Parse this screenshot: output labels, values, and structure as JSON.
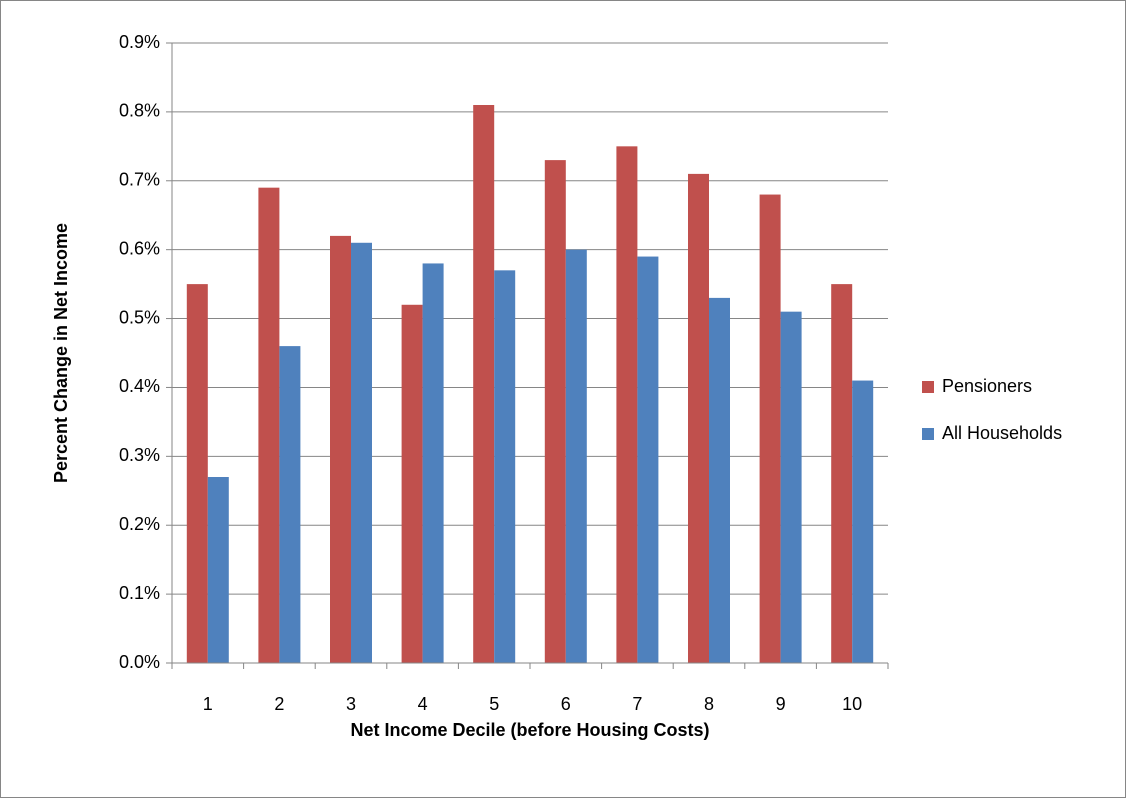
{
  "chart_data": {
    "type": "bar",
    "x_label": "Net Income Decile (before Housing Costs)",
    "y_label": "Percent Change in Net Income",
    "categories": [
      "1",
      "2",
      "3",
      "4",
      "5",
      "6",
      "7",
      "8",
      "9",
      "10"
    ],
    "series": [
      {
        "name": "Pensioners",
        "color": "#c0504d",
        "values": [
          0.55,
          0.69,
          0.62,
          0.52,
          0.81,
          0.73,
          0.75,
          0.71,
          0.68,
          0.55
        ]
      },
      {
        "name": "All Households",
        "color": "#4f81bd",
        "values": [
          0.27,
          0.46,
          0.61,
          0.58,
          0.57,
          0.6,
          0.59,
          0.53,
          0.51,
          0.41
        ]
      }
    ],
    "ylim": [
      0,
      0.9
    ],
    "yticks": [
      {
        "value": 0,
        "label": "0.0%"
      },
      {
        "value": 0.1,
        "label": "0.1%"
      },
      {
        "value": 0.2,
        "label": "0.2%"
      },
      {
        "value": 0.3,
        "label": "0.3%"
      },
      {
        "value": 0.4,
        "label": "0.4%"
      },
      {
        "value": 0.5,
        "label": "0.5%"
      },
      {
        "value": 0.6,
        "label": "0.6%"
      },
      {
        "value": 0.7,
        "label": "0.7%"
      },
      {
        "value": 0.8,
        "label": "0.8%"
      },
      {
        "value": 0.9,
        "label": "0.9%"
      }
    ],
    "grid": true,
    "legend": "right"
  }
}
